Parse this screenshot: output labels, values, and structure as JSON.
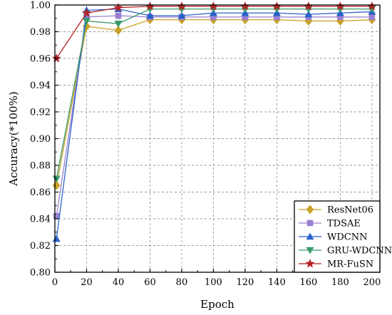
{
  "chart_data": {
    "type": "line",
    "xlabel": "Epoch",
    "ylabel": "Accuracy(*100%)",
    "xlim": [
      0,
      205
    ],
    "ylim": [
      0.8,
      1.0
    ],
    "grid": true,
    "legend_position": "bottom-right",
    "x_ticks": [
      "0",
      "20",
      "40",
      "60",
      "80",
      "100",
      "120",
      "140",
      "160",
      "180",
      "200"
    ],
    "y_ticks": [
      "0.80",
      "0.82",
      "0.84",
      "0.86",
      "0.88",
      "0.90",
      "0.92",
      "0.94",
      "0.96",
      "0.98",
      "1.00"
    ],
    "x": [
      1,
      20,
      40,
      60,
      80,
      100,
      120,
      140,
      160,
      180,
      200
    ],
    "series": [
      {
        "name": "ResNet06",
        "color": "#c9a227",
        "marker": "diamond",
        "values": [
          0.865,
          0.984,
          0.981,
          0.989,
          0.989,
          0.989,
          0.989,
          0.989,
          0.988,
          0.988,
          0.989
        ]
      },
      {
        "name": "TDSAE",
        "color": "#9a7fd1",
        "marker": "square",
        "values": [
          0.842,
          0.991,
          0.992,
          0.991,
          0.991,
          0.991,
          0.991,
          0.991,
          0.991,
          0.991,
          0.991
        ]
      },
      {
        "name": "WDCNN",
        "color": "#2b62c9",
        "marker": "triangle-up",
        "values": [
          0.825,
          0.996,
          0.997,
          0.992,
          0.992,
          0.994,
          0.994,
          0.994,
          0.993,
          0.994,
          0.995
        ]
      },
      {
        "name": "GRU-WDCNN",
        "color": "#3a9a6a",
        "marker": "triangle-down",
        "values": [
          0.87,
          0.988,
          0.986,
          0.997,
          0.997,
          0.997,
          0.997,
          0.997,
          0.997,
          0.997,
          0.997
        ]
      },
      {
        "name": "MR-FuSN",
        "color": "#b22222",
        "marker": "star",
        "values": [
          0.96,
          0.994,
          0.998,
          0.999,
          0.999,
          0.999,
          0.999,
          0.999,
          0.999,
          0.999,
          0.999
        ]
      }
    ]
  }
}
